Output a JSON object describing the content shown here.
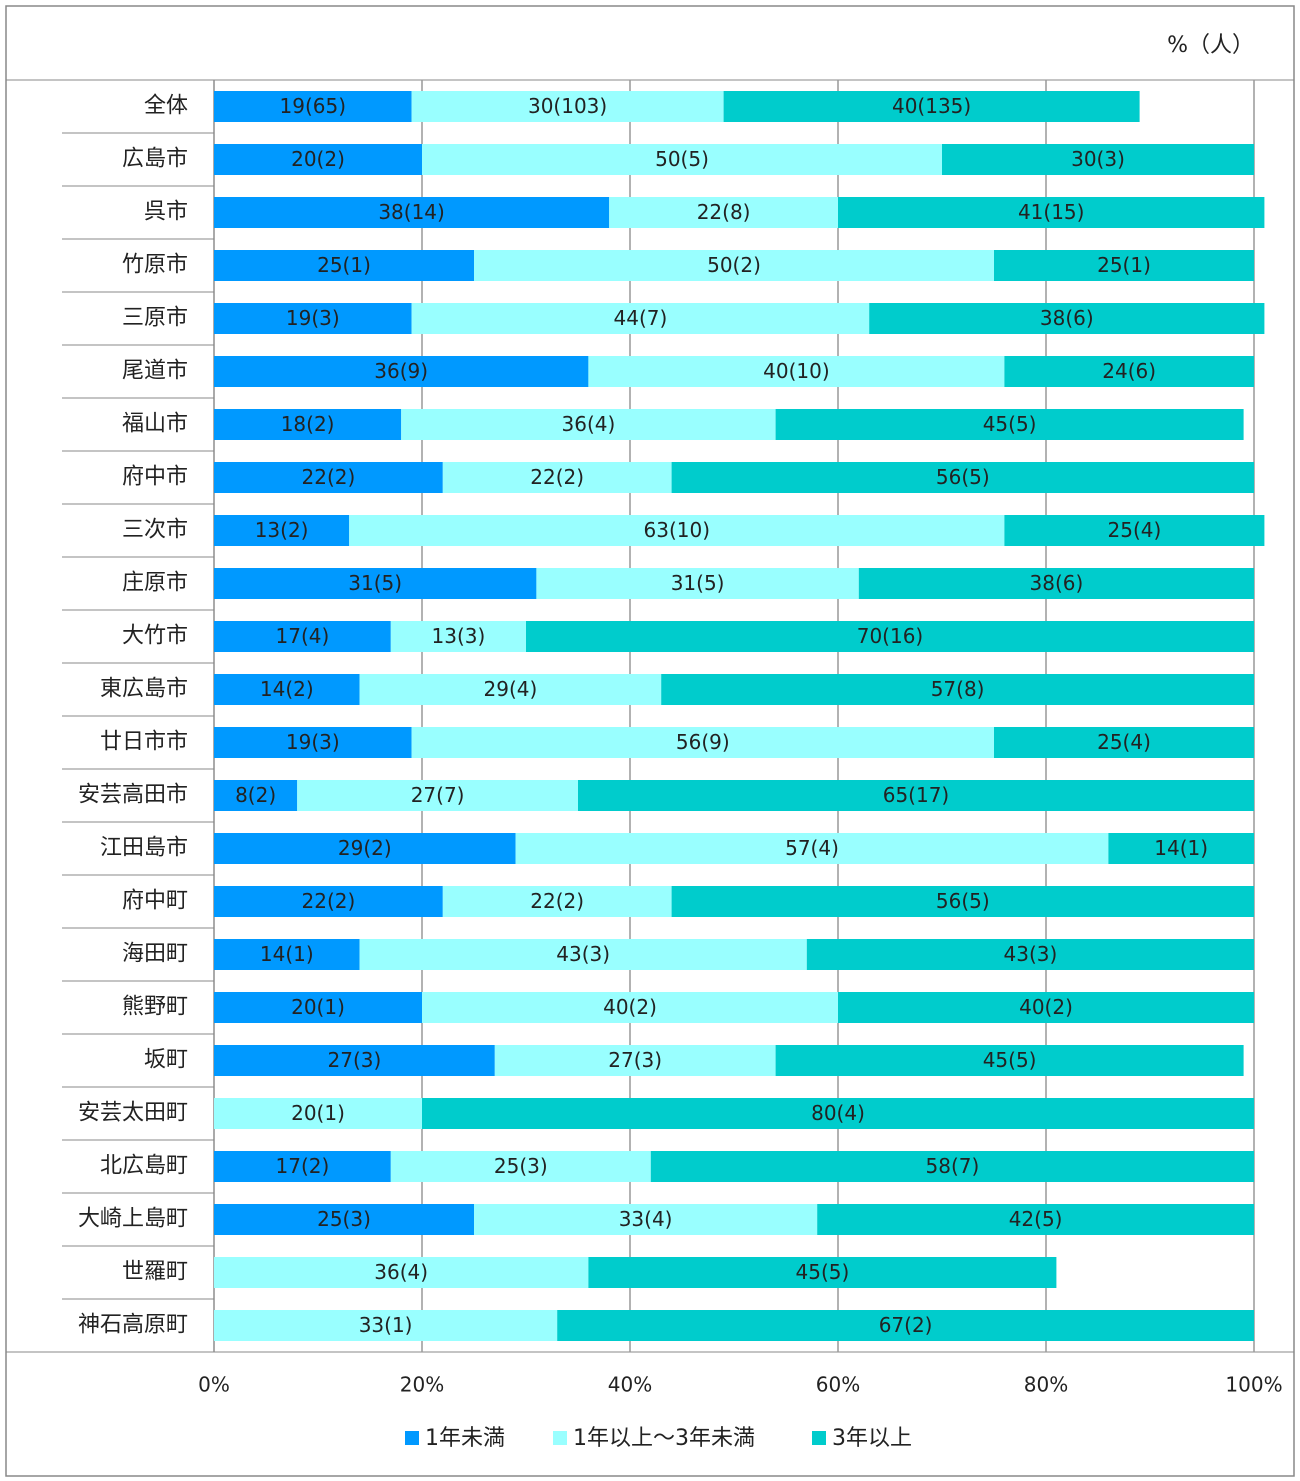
{
  "chart_data": {
    "type": "stacked_bar_horizontal",
    "unit_label": "%（人）",
    "categories": [
      "全体",
      "広島市",
      "呉市",
      "竹原市",
      "三原市",
      "尾道市",
      "福山市",
      "府中市",
      "三次市",
      "庄原市",
      "大竹市",
      "東広島市",
      "廿日市市",
      "安芸高田市",
      "江田島市",
      "府中町",
      "海田町",
      "熊野町",
      "坂町",
      "安芸太田町",
      "北広島町",
      "大崎上島町",
      "世羅町",
      "神石高原町"
    ],
    "series": [
      {
        "name": "1年未満",
        "color": "#0099ff",
        "values": [
          19,
          20,
          38,
          25,
          19,
          36,
          18,
          22,
          13,
          31,
          17,
          14,
          19,
          8,
          29,
          22,
          14,
          20,
          27,
          null,
          17,
          25,
          null,
          null
        ],
        "value_labels": [
          "19(65)",
          "20(2)",
          "38(14)",
          "25(1)",
          "19(3)",
          "36(9)",
          "18(2)",
          "22(2)",
          "13(2)",
          "31(5)",
          "17(4)",
          "14(2)",
          "19(3)",
          "8(2)",
          "29(2)",
          "22(2)",
          "14(1)",
          "20(1)",
          "27(3)",
          null,
          "17(2)",
          "25(3)",
          null,
          null
        ]
      },
      {
        "name": "1年以上～3年未満",
        "color": "#99ffff",
        "values": [
          30,
          50,
          22,
          50,
          44,
          40,
          36,
          22,
          63,
          31,
          13,
          29,
          56,
          27,
          57,
          22,
          43,
          40,
          27,
          20,
          25,
          33,
          36,
          33
        ],
        "value_labels": [
          "30(103)",
          "50(5)",
          "22(8)",
          "50(2)",
          "44(7)",
          "40(10)",
          "36(4)",
          "22(2)",
          "63(10)",
          "31(5)",
          "13(3)",
          "29(4)",
          "56(9)",
          "27(7)",
          "57(4)",
          "22(2)",
          "43(3)",
          "40(2)",
          "27(3)",
          "20(1)",
          "25(3)",
          "33(4)",
          "36(4)",
          "33(1)"
        ]
      },
      {
        "name": "3年以上",
        "color": "#00cccc",
        "values": [
          40,
          30,
          41,
          25,
          38,
          24,
          45,
          56,
          25,
          38,
          70,
          57,
          25,
          65,
          14,
          56,
          43,
          40,
          45,
          80,
          58,
          42,
          45,
          67
        ],
        "value_labels": [
          "40(135)",
          "30(3)",
          "41(15)",
          "25(1)",
          "38(6)",
          "24(6)",
          "45(5)",
          "56(5)",
          "25(4)",
          "38(6)",
          "70(16)",
          "57(8)",
          "25(4)",
          "65(17)",
          "14(1)",
          "56(5)",
          "43(3)",
          "40(2)",
          "45(5)",
          "80(4)",
          "58(7)",
          "42(5)",
          "45(5)",
          "67(2)"
        ]
      }
    ],
    "xlim": [
      0,
      100
    ],
    "xticks": [
      {
        "value": 0,
        "label": "0%"
      },
      {
        "value": 20,
        "label": "20%"
      },
      {
        "value": 40,
        "label": "40%"
      },
      {
        "value": 60,
        "label": "60%"
      },
      {
        "value": 80,
        "label": "80%"
      },
      {
        "value": 100,
        "label": "100%"
      }
    ],
    "grid": true,
    "legend": "bottom"
  }
}
